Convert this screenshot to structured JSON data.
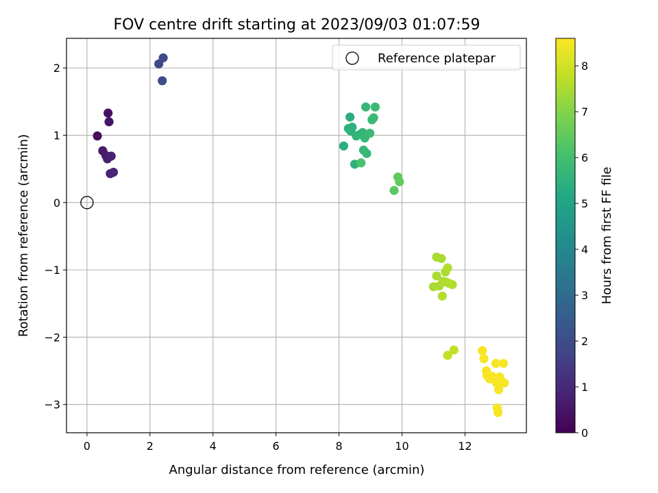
{
  "chart_data": {
    "type": "scatter",
    "title": "FOV centre drift starting at 2023/09/03 01:07:59",
    "xlabel": "Angular distance from reference (arcmin)",
    "ylabel": "Rotation from reference (arcmin)",
    "xlim": [
      -0.65,
      13.95
    ],
    "ylim": [
      -3.42,
      2.44
    ],
    "xticks": [
      0,
      2,
      4,
      6,
      8,
      10,
      12
    ],
    "yticks": [
      -3,
      -2,
      -1,
      0,
      1,
      2
    ],
    "xtick_labels": [
      "0",
      "2",
      "4",
      "6",
      "8",
      "10",
      "12"
    ],
    "ytick_labels": [
      "−3",
      "−2",
      "−1",
      "0",
      "1",
      "2"
    ],
    "grid": true,
    "legend": {
      "placement": "top-right",
      "entries": [
        {
          "label": "Reference platepar",
          "marker": "open-circle"
        }
      ]
    },
    "reference_point": {
      "x": 0,
      "y": 0
    },
    "colorbar": {
      "label": "Hours from first FF file",
      "colormap": "viridis",
      "range": [
        0,
        8.6
      ],
      "ticks": [
        0,
        1,
        2,
        3,
        4,
        5,
        6,
        7,
        8
      ],
      "tick_labels": [
        "0",
        "1",
        "2",
        "3",
        "4",
        "5",
        "6",
        "7",
        "8"
      ]
    },
    "points": [
      {
        "x": 0.33,
        "y": 0.99,
        "h": 0.3
      },
      {
        "x": 0.67,
        "y": 1.33,
        "h": 0.4
      },
      {
        "x": 0.7,
        "y": 1.2,
        "h": 0.5
      },
      {
        "x": 0.5,
        "y": 0.77,
        "h": 0.6
      },
      {
        "x": 0.6,
        "y": 0.7,
        "h": 0.7
      },
      {
        "x": 0.65,
        "y": 0.65,
        "h": 0.7
      },
      {
        "x": 0.77,
        "y": 0.69,
        "h": 0.8
      },
      {
        "x": 0.74,
        "y": 0.43,
        "h": 0.8
      },
      {
        "x": 0.84,
        "y": 0.45,
        "h": 0.9
      },
      {
        "x": 2.28,
        "y": 2.06,
        "h": 1.9
      },
      {
        "x": 2.42,
        "y": 2.15,
        "h": 1.95
      },
      {
        "x": 2.39,
        "y": 1.81,
        "h": 2.0
      },
      {
        "x": 8.15,
        "y": 0.84,
        "h": 5.4
      },
      {
        "x": 8.35,
        "y": 1.27,
        "h": 5.4
      },
      {
        "x": 8.3,
        "y": 1.1,
        "h": 5.5
      },
      {
        "x": 8.42,
        "y": 1.12,
        "h": 5.5
      },
      {
        "x": 8.38,
        "y": 1.06,
        "h": 5.5
      },
      {
        "x": 8.5,
        "y": 0.57,
        "h": 5.5
      },
      {
        "x": 8.55,
        "y": 0.99,
        "h": 5.6
      },
      {
        "x": 8.65,
        "y": 1.01,
        "h": 5.6
      },
      {
        "x": 8.75,
        "y": 1.04,
        "h": 5.6
      },
      {
        "x": 8.82,
        "y": 0.96,
        "h": 5.7
      },
      {
        "x": 8.78,
        "y": 0.78,
        "h": 5.7
      },
      {
        "x": 8.88,
        "y": 0.73,
        "h": 5.7
      },
      {
        "x": 8.85,
        "y": 1.42,
        "h": 5.7
      },
      {
        "x": 8.98,
        "y": 1.03,
        "h": 5.8
      },
      {
        "x": 9.05,
        "y": 1.23,
        "h": 5.8
      },
      {
        "x": 9.1,
        "y": 1.26,
        "h": 5.8
      },
      {
        "x": 9.15,
        "y": 1.42,
        "h": 5.8
      },
      {
        "x": 8.7,
        "y": 0.59,
        "h": 6.1
      },
      {
        "x": 9.75,
        "y": 0.18,
        "h": 6.4
      },
      {
        "x": 9.87,
        "y": 0.38,
        "h": 6.5
      },
      {
        "x": 9.92,
        "y": 0.31,
        "h": 6.5
      },
      {
        "x": 11.1,
        "y": -0.81,
        "h": 7.5
      },
      {
        "x": 11.25,
        "y": -0.83,
        "h": 7.5
      },
      {
        "x": 11.0,
        "y": -1.25,
        "h": 7.5
      },
      {
        "x": 11.1,
        "y": -1.09,
        "h": 7.5
      },
      {
        "x": 11.18,
        "y": -1.24,
        "h": 7.5
      },
      {
        "x": 11.3,
        "y": -1.17,
        "h": 7.5
      },
      {
        "x": 11.38,
        "y": -1.03,
        "h": 7.5
      },
      {
        "x": 11.45,
        "y": -0.97,
        "h": 7.6
      },
      {
        "x": 11.4,
        "y": -1.18,
        "h": 7.6
      },
      {
        "x": 11.5,
        "y": -1.2,
        "h": 7.6
      },
      {
        "x": 11.6,
        "y": -1.22,
        "h": 7.6
      },
      {
        "x": 11.28,
        "y": -1.39,
        "h": 7.6
      },
      {
        "x": 11.45,
        "y": -2.27,
        "h": 7.8
      },
      {
        "x": 11.65,
        "y": -2.19,
        "h": 7.8
      },
      {
        "x": 12.55,
        "y": -2.2,
        "h": 8.5
      },
      {
        "x": 12.6,
        "y": -2.32,
        "h": 8.5
      },
      {
        "x": 12.68,
        "y": -2.5,
        "h": 8.5
      },
      {
        "x": 12.7,
        "y": -2.57,
        "h": 8.5
      },
      {
        "x": 12.78,
        "y": -2.62,
        "h": 8.5
      },
      {
        "x": 12.85,
        "y": -2.58,
        "h": 8.5
      },
      {
        "x": 12.98,
        "y": -2.39,
        "h": 8.5
      },
      {
        "x": 13.0,
        "y": -2.68,
        "h": 8.5
      },
      {
        "x": 13.02,
        "y": -3.05,
        "h": 8.5
      },
      {
        "x": 13.07,
        "y": -2.78,
        "h": 8.5
      },
      {
        "x": 13.1,
        "y": -2.59,
        "h": 8.5
      },
      {
        "x": 13.15,
        "y": -2.65,
        "h": 8.5
      },
      {
        "x": 13.22,
        "y": -2.39,
        "h": 8.5
      },
      {
        "x": 13.25,
        "y": -2.68,
        "h": 8.5
      },
      {
        "x": 13.05,
        "y": -3.12,
        "h": 8.5
      }
    ]
  }
}
